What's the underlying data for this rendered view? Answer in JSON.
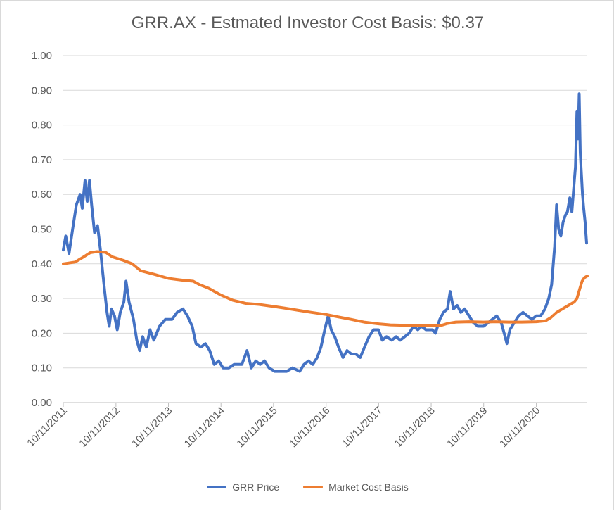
{
  "chart_data": {
    "type": "line",
    "title": "GRR.AX - Estmated Investor Cost Basis:  $0.37",
    "xlabel": "",
    "ylabel": "",
    "ylim": [
      0,
      1.0
    ],
    "yticks": [
      "0.00",
      "0.10",
      "0.20",
      "0.30",
      "0.40",
      "0.50",
      "0.60",
      "0.70",
      "0.80",
      "0.90",
      "1.00"
    ],
    "xlim": [
      "2011-10-11",
      "2021-09-30"
    ],
    "xticks": [
      "10/11/2011",
      "10/11/2012",
      "10/11/2013",
      "10/11/2014",
      "10/11/2015",
      "10/11/2016",
      "10/11/2017",
      "10/11/2018",
      "10/11/2019",
      "10/11/2020"
    ],
    "grid": true,
    "legend_position": "bottom",
    "series": [
      {
        "name": "GRR Price",
        "color": "#4472C4",
        "points": [
          [
            "2011-10-11",
            0.44
          ],
          [
            "2011-10-28",
            0.48
          ],
          [
            "2011-11-20",
            0.43
          ],
          [
            "2011-12-15",
            0.5
          ],
          [
            "2012-01-10",
            0.57
          ],
          [
            "2012-02-05",
            0.6
          ],
          [
            "2012-02-20",
            0.56
          ],
          [
            "2012-03-10",
            0.64
          ],
          [
            "2012-03-25",
            0.58
          ],
          [
            "2012-04-10",
            0.64
          ],
          [
            "2012-04-25",
            0.57
          ],
          [
            "2012-05-15",
            0.49
          ],
          [
            "2012-06-05",
            0.51
          ],
          [
            "2012-06-25",
            0.44
          ],
          [
            "2012-07-10",
            0.38
          ],
          [
            "2012-07-25",
            0.32
          ],
          [
            "2012-08-10",
            0.26
          ],
          [
            "2012-08-25",
            0.22
          ],
          [
            "2012-09-10",
            0.27
          ],
          [
            "2012-10-01",
            0.25
          ],
          [
            "2012-10-20",
            0.21
          ],
          [
            "2012-11-10",
            0.26
          ],
          [
            "2012-12-05",
            0.29
          ],
          [
            "2012-12-20",
            0.35
          ],
          [
            "2013-01-10",
            0.29
          ],
          [
            "2013-02-10",
            0.24
          ],
          [
            "2013-03-05",
            0.18
          ],
          [
            "2013-03-25",
            0.15
          ],
          [
            "2013-04-15",
            0.19
          ],
          [
            "2013-05-10",
            0.16
          ],
          [
            "2013-06-05",
            0.21
          ],
          [
            "2013-07-01",
            0.18
          ],
          [
            "2013-08-10",
            0.22
          ],
          [
            "2013-09-20",
            0.24
          ],
          [
            "2013-11-05",
            0.24
          ],
          [
            "2013-12-10",
            0.26
          ],
          [
            "2014-01-20",
            0.27
          ],
          [
            "2014-02-20",
            0.25
          ],
          [
            "2014-03-25",
            0.22
          ],
          [
            "2014-04-20",
            0.17
          ],
          [
            "2014-05-25",
            0.16
          ],
          [
            "2014-06-25",
            0.17
          ],
          [
            "2014-07-25",
            0.15
          ],
          [
            "2014-08-25",
            0.11
          ],
          [
            "2014-09-25",
            0.12
          ],
          [
            "2014-10-25",
            0.1
          ],
          [
            "2014-12-05",
            0.1
          ],
          [
            "2015-01-10",
            0.11
          ],
          [
            "2015-03-05",
            0.11
          ],
          [
            "2015-04-10",
            0.15
          ],
          [
            "2015-05-10",
            0.1
          ],
          [
            "2015-06-10",
            0.12
          ],
          [
            "2015-07-10",
            0.11
          ],
          [
            "2015-08-10",
            0.12
          ],
          [
            "2015-09-10",
            0.1
          ],
          [
            "2015-10-20",
            0.09
          ],
          [
            "2016-01-10",
            0.09
          ],
          [
            "2016-02-20",
            0.1
          ],
          [
            "2016-04-10",
            0.09
          ],
          [
            "2016-05-10",
            0.11
          ],
          [
            "2016-06-10",
            0.12
          ],
          [
            "2016-07-10",
            0.11
          ],
          [
            "2016-08-10",
            0.13
          ],
          [
            "2016-09-05",
            0.16
          ],
          [
            "2016-10-01",
            0.21
          ],
          [
            "2016-10-25",
            0.25
          ],
          [
            "2016-11-15",
            0.21
          ],
          [
            "2016-12-10",
            0.19
          ],
          [
            "2017-01-05",
            0.16
          ],
          [
            "2017-02-05",
            0.13
          ],
          [
            "2017-03-05",
            0.15
          ],
          [
            "2017-04-05",
            0.14
          ],
          [
            "2017-05-05",
            0.14
          ],
          [
            "2017-06-05",
            0.13
          ],
          [
            "2017-07-05",
            0.16
          ],
          [
            "2017-08-05",
            0.19
          ],
          [
            "2017-09-05",
            0.21
          ],
          [
            "2017-10-10",
            0.21
          ],
          [
            "2017-11-05",
            0.18
          ],
          [
            "2017-12-05",
            0.19
          ],
          [
            "2018-01-10",
            0.18
          ],
          [
            "2018-02-10",
            0.19
          ],
          [
            "2018-03-10",
            0.18
          ],
          [
            "2018-04-10",
            0.19
          ],
          [
            "2018-05-10",
            0.2
          ],
          [
            "2018-06-10",
            0.22
          ],
          [
            "2018-07-10",
            0.21
          ],
          [
            "2018-08-05",
            0.22
          ],
          [
            "2018-09-05",
            0.21
          ],
          [
            "2018-10-01",
            0.21
          ],
          [
            "2018-10-20",
            0.21
          ],
          [
            "2018-11-10",
            0.2
          ],
          [
            "2018-12-10",
            0.24
          ],
          [
            "2019-01-05",
            0.26
          ],
          [
            "2019-02-01",
            0.27
          ],
          [
            "2019-02-20",
            0.32
          ],
          [
            "2019-03-15",
            0.27
          ],
          [
            "2019-04-10",
            0.28
          ],
          [
            "2019-05-05",
            0.26
          ],
          [
            "2019-06-01",
            0.27
          ],
          [
            "2019-07-01",
            0.25
          ],
          [
            "2019-08-01",
            0.23
          ],
          [
            "2019-09-01",
            0.22
          ],
          [
            "2019-10-10",
            0.22
          ],
          [
            "2019-11-10",
            0.23
          ],
          [
            "2019-12-10",
            0.24
          ],
          [
            "2020-01-10",
            0.25
          ],
          [
            "2020-02-10",
            0.23
          ],
          [
            "2020-03-01",
            0.2
          ],
          [
            "2020-03-20",
            0.17
          ],
          [
            "2020-04-10",
            0.21
          ],
          [
            "2020-05-10",
            0.23
          ],
          [
            "2020-06-10",
            0.25
          ],
          [
            "2020-07-10",
            0.26
          ],
          [
            "2020-08-10",
            0.25
          ],
          [
            "2020-09-10",
            0.24
          ],
          [
            "2020-10-10",
            0.25
          ],
          [
            "2020-11-10",
            0.25
          ],
          [
            "2020-12-10",
            0.27
          ],
          [
            "2021-01-05",
            0.3
          ],
          [
            "2021-01-25",
            0.34
          ],
          [
            "2021-02-15",
            0.45
          ],
          [
            "2021-03-01",
            0.57
          ],
          [
            "2021-03-15",
            0.5
          ],
          [
            "2021-03-30",
            0.48
          ],
          [
            "2021-04-15",
            0.52
          ],
          [
            "2021-05-01",
            0.54
          ],
          [
            "2021-05-15",
            0.55
          ],
          [
            "2021-06-01",
            0.59
          ],
          [
            "2021-06-15",
            0.55
          ],
          [
            "2021-06-28",
            0.62
          ],
          [
            "2021-07-10",
            0.68
          ],
          [
            "2021-07-20",
            0.84
          ],
          [
            "2021-07-28",
            0.76
          ],
          [
            "2021-08-05",
            0.89
          ],
          [
            "2021-08-12",
            0.72
          ],
          [
            "2021-08-20",
            0.66
          ],
          [
            "2021-08-28",
            0.6
          ],
          [
            "2021-09-05",
            0.56
          ],
          [
            "2021-09-15",
            0.52
          ],
          [
            "2021-09-25",
            0.46
          ]
        ]
      },
      {
        "name": "Market Cost Basis",
        "color": "#ED7D31",
        "points": [
          [
            "2011-10-11",
            0.4
          ],
          [
            "2012-01-01",
            0.405
          ],
          [
            "2012-03-01",
            0.42
          ],
          [
            "2012-04-15",
            0.432
          ],
          [
            "2012-06-01",
            0.435
          ],
          [
            "2012-08-01",
            0.433
          ],
          [
            "2012-09-15",
            0.42
          ],
          [
            "2012-12-01",
            0.41
          ],
          [
            "2013-02-01",
            0.4
          ],
          [
            "2013-04-01",
            0.38
          ],
          [
            "2013-07-01",
            0.37
          ],
          [
            "2013-10-11",
            0.358
          ],
          [
            "2014-01-15",
            0.353
          ],
          [
            "2014-04-01",
            0.35
          ],
          [
            "2014-05-15",
            0.34
          ],
          [
            "2014-07-15",
            0.33
          ],
          [
            "2014-10-11",
            0.31
          ],
          [
            "2015-01-01",
            0.295
          ],
          [
            "2015-04-01",
            0.286
          ],
          [
            "2015-07-01",
            0.283
          ],
          [
            "2015-10-11",
            0.277
          ],
          [
            "2016-01-01",
            0.272
          ],
          [
            "2016-04-01",
            0.266
          ],
          [
            "2016-07-01",
            0.26
          ],
          [
            "2016-10-11",
            0.254
          ],
          [
            "2017-01-01",
            0.247
          ],
          [
            "2017-04-01",
            0.24
          ],
          [
            "2017-07-01",
            0.232
          ],
          [
            "2017-10-11",
            0.227
          ],
          [
            "2018-01-01",
            0.224
          ],
          [
            "2018-04-01",
            0.223
          ],
          [
            "2018-07-01",
            0.222
          ],
          [
            "2018-10-11",
            0.221
          ],
          [
            "2018-12-15",
            0.222
          ],
          [
            "2019-02-01",
            0.228
          ],
          [
            "2019-04-01",
            0.232
          ],
          [
            "2019-07-01",
            0.233
          ],
          [
            "2019-10-11",
            0.232
          ],
          [
            "2020-01-01",
            0.233
          ],
          [
            "2020-04-01",
            0.232
          ],
          [
            "2020-07-01",
            0.232
          ],
          [
            "2020-10-11",
            0.233
          ],
          [
            "2020-12-15",
            0.236
          ],
          [
            "2021-01-20",
            0.245
          ],
          [
            "2021-03-01",
            0.26
          ],
          [
            "2021-05-01",
            0.275
          ],
          [
            "2021-07-01",
            0.29
          ],
          [
            "2021-07-20",
            0.3
          ],
          [
            "2021-08-10",
            0.33
          ],
          [
            "2021-08-25",
            0.35
          ],
          [
            "2021-09-10",
            0.36
          ],
          [
            "2021-09-30",
            0.365
          ]
        ]
      }
    ]
  }
}
